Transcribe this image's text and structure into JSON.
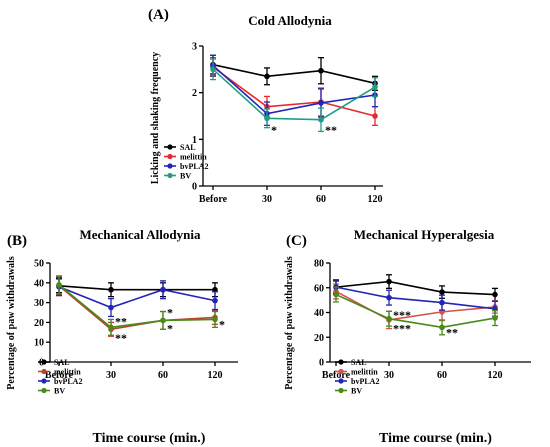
{
  "chart_data": [
    {
      "type": "line",
      "panel_label": "(A)",
      "title": "Cold Allodynia",
      "xlabel": "",
      "ylabel": "Licking and shaking frequency",
      "categories": [
        "Before",
        "30",
        "60",
        "120"
      ],
      "ylim": [
        0,
        3
      ],
      "yticks": [
        0,
        1,
        2,
        3
      ],
      "legend_placement": "lower-left",
      "series": [
        {
          "name": "SAL",
          "color": "#000000",
          "values": [
            2.6,
            2.35,
            2.47,
            2.2
          ],
          "errors": [
            0.2,
            0.18,
            0.28,
            0.15
          ]
        },
        {
          "name": "melittin",
          "color": "#e8262b",
          "values": [
            2.55,
            1.7,
            1.8,
            1.5
          ],
          "errors": [
            0.2,
            0.22,
            0.3,
            0.2
          ]
        },
        {
          "name": "bvPLA2",
          "color": "#2324b8",
          "values": [
            2.58,
            1.55,
            1.78,
            1.95
          ],
          "errors": [
            0.22,
            0.25,
            0.3,
            0.25
          ]
        },
        {
          "name": "BV",
          "color": "#1f9e87",
          "values": [
            2.5,
            1.45,
            1.42,
            2.12
          ],
          "errors": [
            0.22,
            0.2,
            0.25,
            0.2
          ]
        }
      ],
      "annotations": [
        {
          "text": "*",
          "x": "30",
          "y": 1.2,
          "color": "#1f9e87"
        },
        {
          "text": "**",
          "x": "60",
          "y": 1.2,
          "color": "#1f9e87"
        }
      ]
    },
    {
      "type": "line",
      "panel_label": "(B)",
      "title": "Mechanical Allodynia",
      "xlabel": "Time course (min.)",
      "ylabel": "Percentage of paw withdrawals",
      "categories": [
        "Before",
        "30",
        "60",
        "120"
      ],
      "ylim": [
        0,
        50
      ],
      "yticks": [
        0,
        10,
        20,
        30,
        40,
        50
      ],
      "legend_placement": "lower-left",
      "series": [
        {
          "name": "SAL",
          "color": "#000000",
          "values": [
            38.5,
            36.5,
            36.5,
            36.5
          ],
          "errors": [
            3.5,
            3.5,
            3.5,
            3.5
          ]
        },
        {
          "name": "melittin",
          "color": "#b5462f",
          "values": [
            38.5,
            16.5,
            21,
            22.5
          ],
          "errors": [
            4.5,
            3.5,
            4.5,
            3.5
          ]
        },
        {
          "name": "bvPLA2",
          "color": "#2324b8",
          "values": [
            38,
            27.5,
            36.5,
            31
          ],
          "errors": [
            4.5,
            4.5,
            4.5,
            4.5
          ]
        },
        {
          "name": "BV",
          "color": "#4a8a18",
          "values": [
            39,
            17.5,
            21,
            21.5
          ],
          "errors": [
            4.5,
            4,
            4.5,
            4
          ]
        }
      ],
      "annotations": [
        {
          "text": "**",
          "x": "30",
          "y": 20.5,
          "color": "#1f9e87"
        },
        {
          "text": "**",
          "x": "30",
          "y": 12,
          "color": "#8a3a8a"
        },
        {
          "text": "*",
          "x": "60",
          "y": 25,
          "color": "#1f9e87"
        },
        {
          "text": "*",
          "x": "60",
          "y": 17,
          "color": "#1f9e87"
        },
        {
          "text": "*",
          "x": "120",
          "y": 19,
          "color": "#1f9e87"
        }
      ]
    },
    {
      "type": "line",
      "panel_label": "(C)",
      "title": "Mechanical Hyperalgesia",
      "xlabel": "Time course (min.)",
      "ylabel": "Percentage of paw withdrawals",
      "categories": [
        "Before",
        "30",
        "60",
        "120"
      ],
      "ylim": [
        0,
        80
      ],
      "yticks": [
        0,
        20,
        40,
        60,
        80
      ],
      "legend_placement": "lower-left",
      "series": [
        {
          "name": "SAL",
          "color": "#000000",
          "values": [
            60.5,
            65,
            56.5,
            54.5
          ],
          "errors": [
            5,
            5.5,
            5,
            5
          ]
        },
        {
          "name": "melittin",
          "color": "#d4524a",
          "values": [
            57,
            34,
            40.5,
            44.5
          ],
          "errors": [
            6,
            7,
            7,
            5
          ]
        },
        {
          "name": "bvPLA2",
          "color": "#2324b8",
          "values": [
            60.5,
            52,
            48,
            43
          ],
          "errors": [
            6,
            6,
            6,
            6
          ]
        },
        {
          "name": "BV",
          "color": "#4a8a18",
          "values": [
            54.5,
            35,
            28,
            35.5
          ],
          "errors": [
            6,
            6,
            6,
            6
          ]
        }
      ],
      "annotations": [
        {
          "text": "***",
          "x": "30",
          "y": 38,
          "color": "#1f9e87"
        },
        {
          "text": "***",
          "x": "30",
          "y": 27,
          "color": "#8a3a8a"
        },
        {
          "text": "**",
          "x": "60",
          "y": 24,
          "color": "#1f9e87"
        }
      ]
    }
  ]
}
